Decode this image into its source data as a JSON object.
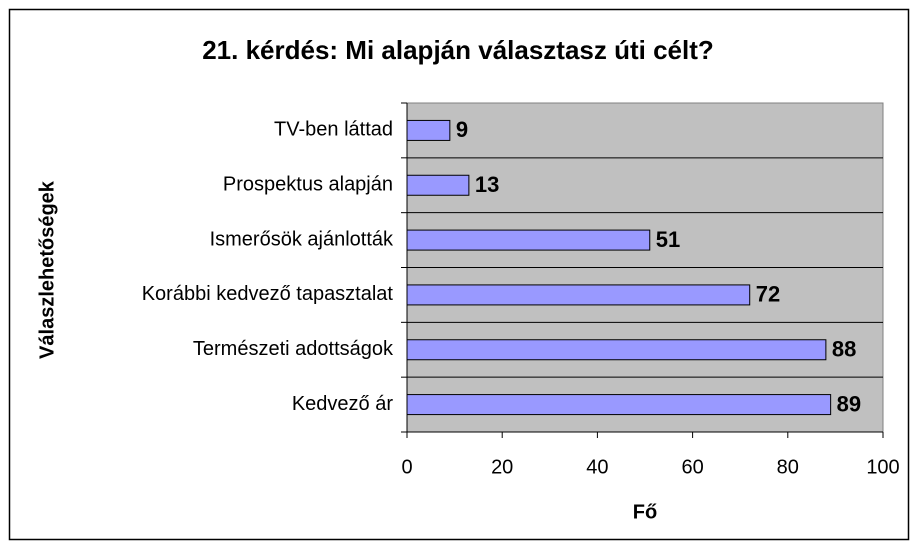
{
  "chart_data": {
    "type": "hbar",
    "title": "21. kérdés: Mi alapján választasz úti célt?",
    "x_label": "Fő",
    "y_label": "Válaszlehetőségek",
    "categories": [
      "TV-ben láttad",
      "Prospektus alapján",
      "Ismerősök ajánlották",
      "Korábbi kedvező tapasztalat",
      "Természeti adottságok",
      "Kedvező ár"
    ],
    "values": [
      9,
      13,
      51,
      72,
      88,
      89
    ],
    "color": "#9999ff",
    "plot_background": "#c0c0c0",
    "xlim": [
      0,
      100
    ],
    "xticks": [
      0,
      20,
      40,
      60,
      80,
      100
    ]
  }
}
